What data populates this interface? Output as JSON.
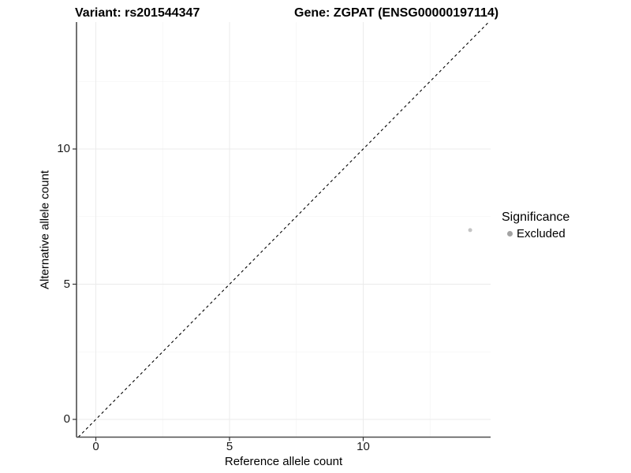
{
  "chart_data": {
    "type": "scatter",
    "titles": {
      "left": "Variant: rs201544347",
      "right": "Gene: ZGPAT (ENSG00000197114)"
    },
    "xlabel": "Reference allele count",
    "ylabel": "Alternative allele count",
    "x_axis": {
      "ticks": [
        0,
        5,
        10
      ],
      "grid_major": [
        0,
        5,
        10
      ],
      "grid_minor": [
        2.5,
        7.5,
        12.5
      ],
      "range": [
        -0.66,
        14.77
      ]
    },
    "y_axis": {
      "ticks": [
        0,
        5,
        10
      ],
      "grid_major": [
        0,
        5,
        10
      ],
      "grid_minor": [
        2.5,
        7.5,
        12.5
      ],
      "range": [
        -0.66,
        14.69
      ]
    },
    "grid": "on",
    "series": [
      {
        "name": "Excluded",
        "color": "#c4c4c4",
        "size": 2.5,
        "points": [
          {
            "x": 14,
            "y": 7
          }
        ]
      }
    ],
    "reference_line": {
      "type": "identity y = x",
      "style": "dashed",
      "color": "#000000"
    },
    "legend": {
      "title": "Significance",
      "position": "right",
      "items": [
        {
          "label": "Excluded",
          "color": "#a3a3a3"
        }
      ]
    }
  },
  "style": {
    "background": "#ffffff",
    "grid_major_color": "#ebebeb",
    "grid_minor_color": "#f5f5f5",
    "axis_line_color": "#4d4d4d",
    "tick_mark_color": "#333333",
    "tick_text_color": "#1a1a1a",
    "title_text_color": "#000000"
  }
}
